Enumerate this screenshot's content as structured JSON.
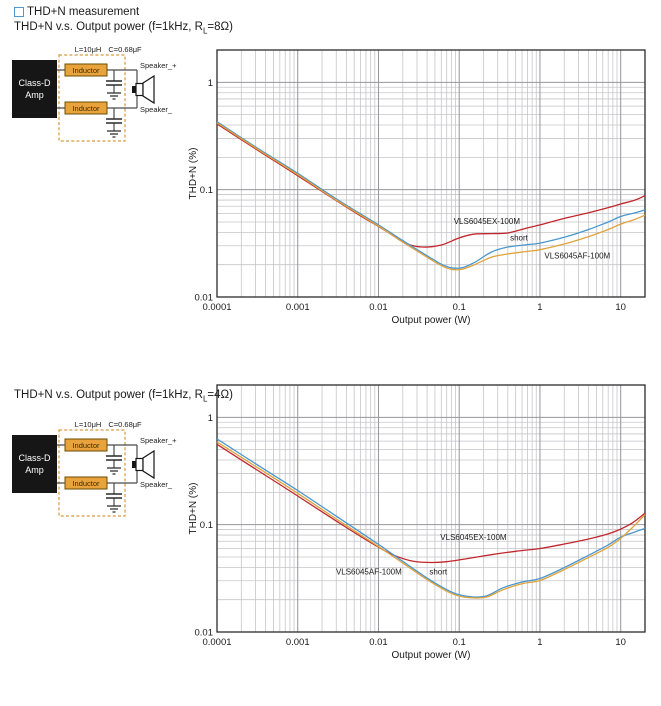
{
  "header": {
    "title": "THD+N measurement",
    "icon": "blue-square-bullet",
    "icon_color": "#4d9bd5"
  },
  "sections": [
    {
      "subtitle": {
        "pre": "THD+N v.s. Output power (f=1kHz, R",
        "sub": "L",
        "post": "=8Ω)"
      },
      "diagram": {
        "l_label": "L=10μH",
        "c_label": "C=0.68μF",
        "amp_line1": "Class-D",
        "amp_line2": "Amp",
        "inductor_label": "Inductor",
        "speaker_plus": "Speaker_+",
        "speaker_minus": "Speaker_",
        "box_color": "#e8a33d",
        "dash_color": "#d69a3e"
      },
      "chart_data": {
        "type": "line",
        "xlabel": "Output power (W)",
        "ylabel": "THD+N (%)",
        "xscale": "log",
        "yscale": "log",
        "xlim": [
          0.0001,
          20
        ],
        "ylim": [
          0.01,
          2
        ],
        "xticks": [
          0.0001,
          0.001,
          0.01,
          0.1,
          1,
          10
        ],
        "xtick_labels": [
          "0.0001",
          "0.001",
          "0.01",
          "0.1",
          "1",
          "10"
        ],
        "yticks": [
          1,
          0.1,
          0.01
        ],
        "ytick_labels": [
          "1",
          "0.1",
          "0.01"
        ],
        "grid": "log-major-minor",
        "legend_position": "inline-labels",
        "series": [
          {
            "name": "VLS6045EX-100M",
            "color": "#c1272d",
            "label_at": {
              "x": 0.22,
              "y": 0.048
            },
            "points": [
              [
                0.0001,
                0.41
              ],
              [
                0.0003,
                0.24
              ],
              [
                0.001,
                0.135
              ],
              [
                0.003,
                0.079
              ],
              [
                0.006,
                0.057
              ],
              [
                0.01,
                0.0455
              ],
              [
                0.015,
                0.0375
              ],
              [
                0.022,
                0.0315
              ],
              [
                0.035,
                0.0292
              ],
              [
                0.06,
                0.0305
              ],
              [
                0.1,
                0.0355
              ],
              [
                0.15,
                0.0385
              ],
              [
                0.25,
                0.039
              ],
              [
                0.4,
                0.0395
              ],
              [
                0.7,
                0.044
              ],
              [
                1,
                0.047
              ],
              [
                2,
                0.054
              ],
              [
                4,
                0.061
              ],
              [
                7,
                0.068
              ],
              [
                10,
                0.0735
              ],
              [
                15,
                0.08
              ],
              [
                20,
                0.088
              ]
            ]
          },
          {
            "name": "short",
            "color": "#4a97cd",
            "label_at": {
              "x": 0.55,
              "y": 0.0335
            },
            "points": [
              [
                0.0001,
                0.43
              ],
              [
                0.0003,
                0.25
              ],
              [
                0.001,
                0.142
              ],
              [
                0.003,
                0.082
              ],
              [
                0.01,
                0.047
              ],
              [
                0.02,
                0.0335
              ],
              [
                0.04,
                0.0242
              ],
              [
                0.06,
                0.0202
              ],
              [
                0.08,
                0.0187
              ],
              [
                0.11,
                0.0188
              ],
              [
                0.16,
                0.0213
              ],
              [
                0.25,
                0.0262
              ],
              [
                0.4,
                0.0292
              ],
              [
                0.7,
                0.0308
              ],
              [
                1,
                0.0318
              ],
              [
                2,
                0.036
              ],
              [
                4,
                0.0425
              ],
              [
                7,
                0.05
              ],
              [
                10,
                0.0562
              ],
              [
                15,
                0.0608
              ],
              [
                20,
                0.0648
              ]
            ]
          },
          {
            "name": "VLS6045AF-100M",
            "color": "#dfa33c",
            "label_at": {
              "x": 2.9,
              "y": 0.0228
            },
            "points": [
              [
                0.0001,
                0.42
              ],
              [
                0.0003,
                0.245
              ],
              [
                0.001,
                0.138
              ],
              [
                0.003,
                0.08
              ],
              [
                0.01,
                0.0458
              ],
              [
                0.02,
                0.0325
              ],
              [
                0.04,
                0.0235
              ],
              [
                0.06,
                0.0196
              ],
              [
                0.08,
                0.0181
              ],
              [
                0.11,
                0.0182
              ],
              [
                0.16,
                0.0202
              ],
              [
                0.25,
                0.0235
              ],
              [
                0.4,
                0.0252
              ],
              [
                0.7,
                0.0266
              ],
              [
                1,
                0.0276
              ],
              [
                2,
                0.0312
              ],
              [
                4,
                0.0365
              ],
              [
                7,
                0.0425
              ],
              [
                10,
                0.0478
              ],
              [
                15,
                0.0528
              ],
              [
                20,
                0.058
              ]
            ]
          }
        ]
      }
    },
    {
      "subtitle": {
        "pre": "THD+N v.s. Output power (f=1kHz, R",
        "sub": "L",
        "post": "=4Ω)"
      },
      "diagram": {
        "l_label": "L=10μH",
        "c_label": "C=0.68μF",
        "amp_line1": "Class-D",
        "amp_line2": "Amp",
        "inductor_label": "Inductor",
        "speaker_plus": "Speaker_+",
        "speaker_minus": "Speaker_",
        "box_color": "#e8a33d",
        "dash_color": "#d69a3e"
      },
      "chart_data": {
        "type": "line",
        "xlabel": "Output power (W)",
        "ylabel": "THD+N (%)",
        "xscale": "log",
        "yscale": "log",
        "xlim": [
          0.0001,
          20
        ],
        "ylim": [
          0.01,
          2
        ],
        "xticks": [
          0.0001,
          0.001,
          0.01,
          0.1,
          1,
          10
        ],
        "xtick_labels": [
          "0.0001",
          "0.001",
          "0.01",
          "0.1",
          "1",
          "10"
        ],
        "yticks": [
          1,
          0.1,
          0.01
        ],
        "ytick_labels": [
          "1",
          "0.1",
          "0.01"
        ],
        "grid": "log-major-minor",
        "legend_position": "inline-labels",
        "series": [
          {
            "name": "VLS6045EX-100M",
            "color": "#c1272d",
            "label_at": {
              "x": 0.15,
              "y": 0.072
            },
            "points": [
              [
                0.0001,
                0.56
              ],
              [
                0.0003,
                0.33
              ],
              [
                0.001,
                0.185
              ],
              [
                0.003,
                0.108
              ],
              [
                0.008,
                0.068
              ],
              [
                0.015,
                0.0525
              ],
              [
                0.025,
                0.0462
              ],
              [
                0.04,
                0.0445
              ],
              [
                0.07,
                0.0452
              ],
              [
                0.12,
                0.048
              ],
              [
                0.25,
                0.0525
              ],
              [
                0.5,
                0.0565
              ],
              [
                1,
                0.06
              ],
              [
                2,
                0.066
              ],
              [
                4,
                0.0735
              ],
              [
                7,
                0.082
              ],
              [
                10,
                0.091
              ],
              [
                14,
                0.104
              ],
              [
                20,
                0.128
              ]
            ]
          },
          {
            "name": "short",
            "color": "#4a97cd",
            "label_at": {
              "x": 0.055,
              "y": 0.0345
            },
            "points": [
              [
                0.0001,
                0.63
              ],
              [
                0.0003,
                0.37
              ],
              [
                0.001,
                0.208
              ],
              [
                0.003,
                0.12
              ],
              [
                0.01,
                0.0655
              ],
              [
                0.02,
                0.0455
              ],
              [
                0.04,
                0.0318
              ],
              [
                0.07,
                0.0248
              ],
              [
                0.1,
                0.0222
              ],
              [
                0.15,
                0.0212
              ],
              [
                0.22,
                0.0218
              ],
              [
                0.35,
                0.0258
              ],
              [
                0.6,
                0.0292
              ],
              [
                1,
                0.0315
              ],
              [
                2,
                0.0398
              ],
              [
                4,
                0.0518
              ],
              [
                7,
                0.0648
              ],
              [
                10,
                0.0765
              ],
              [
                15,
                0.0855
              ],
              [
                20,
                0.092
              ]
            ]
          },
          {
            "name": "VLS6045AF-100M",
            "color": "#dfa33c",
            "label_at": {
              "x": 0.0076,
              "y": 0.0345
            },
            "points": [
              [
                0.0001,
                0.59
              ],
              [
                0.0003,
                0.35
              ],
              [
                0.001,
                0.196
              ],
              [
                0.003,
                0.113
              ],
              [
                0.01,
                0.0625
              ],
              [
                0.02,
                0.0438
              ],
              [
                0.04,
                0.0308
              ],
              [
                0.07,
                0.024
              ],
              [
                0.1,
                0.0216
              ],
              [
                0.15,
                0.0208
              ],
              [
                0.22,
                0.0212
              ],
              [
                0.35,
                0.0248
              ],
              [
                0.6,
                0.0282
              ],
              [
                1,
                0.0302
              ],
              [
                2,
                0.0382
              ],
              [
                4,
                0.0495
              ],
              [
                7,
                0.0615
              ],
              [
                10,
                0.0745
              ],
              [
                14,
                0.094
              ],
              [
                20,
                0.124
              ]
            ]
          }
        ]
      }
    }
  ]
}
